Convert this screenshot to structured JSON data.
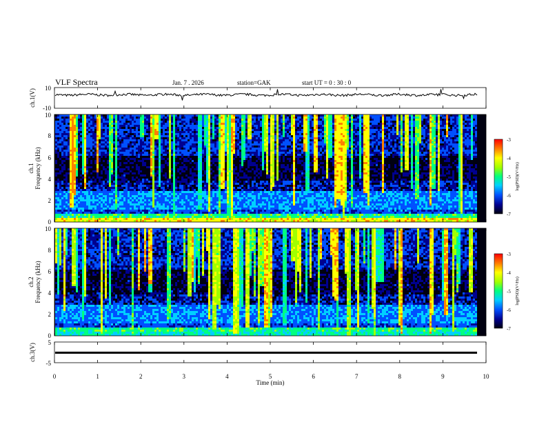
{
  "header": {
    "title": "VLF  Spectra",
    "date": "Jan. 7  . 2026",
    "station": "station=GAK",
    "start": "start  UT =   0  : 30 : 0"
  },
  "chart_data": [
    {
      "type": "line",
      "name": "ch1-waveform",
      "ylabel": "ch.1(V)",
      "ylim": [
        -10,
        10
      ],
      "yticks": [
        "10",
        "-10"
      ],
      "note": "waveform fluctuating near +3 V with occasional spikes"
    },
    {
      "type": "heatmap",
      "name": "ch1-spectrogram",
      "ylabel_line1": "ch.1",
      "ylabel_line2": "Frequency  (kHz)",
      "ylim": [
        0,
        10
      ],
      "yticks": [
        "0",
        "2",
        "4",
        "6",
        "8",
        "10"
      ],
      "colorbar": {
        "label": "log(PSD)(V²/Hz)",
        "range": [
          -7,
          -3
        ],
        "ticks": [
          "-3",
          "-4",
          "-5",
          "-6",
          "-7"
        ]
      }
    },
    {
      "type": "heatmap",
      "name": "ch2-spectrogram",
      "ylabel_line1": "ch.2",
      "ylabel_line2": "Frequency  (kHz)",
      "ylim": [
        0,
        10
      ],
      "yticks": [
        "0",
        "2",
        "4",
        "6",
        "8",
        "10"
      ],
      "colorbar": {
        "label": "log(PSD)(V²/Hz)",
        "range": [
          -7,
          -3
        ],
        "ticks": [
          "-3",
          "-4",
          "-5",
          "-6",
          "-7"
        ]
      }
    },
    {
      "type": "line",
      "name": "ch3-waveform",
      "ylabel": "ch.3(V)",
      "ylim": [
        -5,
        5
      ],
      "yticks": [
        "5",
        "-5"
      ],
      "note": "nearly constant near -1.5 V"
    }
  ],
  "xaxis": {
    "label": "Time  (min)",
    "range": [
      0,
      10
    ],
    "ticks": [
      "0",
      "1",
      "2",
      "3",
      "4",
      "5",
      "6",
      "7",
      "8",
      "9",
      "10"
    ]
  },
  "colors": {
    "scale": [
      "#000010",
      "#00008f",
      "#0050ff",
      "#00d0ff",
      "#00ff80",
      "#a0ff00",
      "#ffff00",
      "#ff8000",
      "#ff0000"
    ]
  }
}
